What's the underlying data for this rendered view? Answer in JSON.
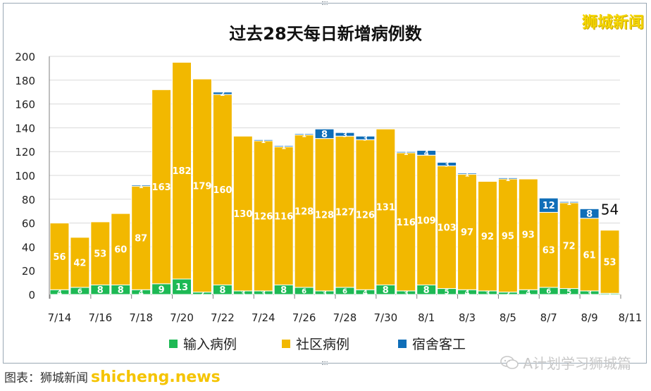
{
  "header": {
    "title": "过去28天每日新增病例数",
    "watermark": "狮城新闻"
  },
  "colors": {
    "imported": "#1db954",
    "community": "#f2b800",
    "dormitory": "#0f6eb8",
    "grid": "#d9d9d9",
    "axis": "#7f7f7f"
  },
  "chart_data": {
    "type": "bar",
    "stacked": true,
    "categories": [
      "7/14",
      "7/15",
      "7/16",
      "7/17",
      "7/18",
      "7/19",
      "7/20",
      "7/21",
      "7/22",
      "7/23",
      "7/24",
      "7/25",
      "7/26",
      "7/27",
      "7/28",
      "7/29",
      "7/30",
      "7/31",
      "8/1",
      "8/2",
      "8/3",
      "8/4",
      "8/5",
      "8/6",
      "8/7",
      "8/8",
      "8/9",
      "8/10"
    ],
    "x_tick_labels": [
      "7/14",
      "7/16",
      "7/18",
      "7/20",
      "7/22",
      "7/24",
      "7/26",
      "7/28",
      "7/30",
      "8/1",
      "8/3",
      "8/5",
      "8/7",
      "8/9",
      "8/11"
    ],
    "series": [
      {
        "name": "输入病例",
        "color": "#1db954",
        "values": [
          4,
          6,
          8,
          8,
          4,
          9,
          13,
          2,
          8,
          3,
          3,
          8,
          6,
          3,
          6,
          4,
          8,
          3,
          8,
          5,
          4,
          3,
          2,
          4,
          6,
          5,
          3,
          1
        ]
      },
      {
        "name": "社区病例",
        "color": "#f2b800",
        "values": [
          56,
          42,
          53,
          60,
          87,
          163,
          182,
          179,
          160,
          130,
          126,
          116,
          128,
          128,
          127,
          126,
          131,
          116,
          109,
          103,
          97,
          92,
          95,
          93,
          63,
          72,
          61,
          53
        ]
      },
      {
        "name": "宿舍客工",
        "color": "#0f6eb8",
        "values": [
          0,
          0,
          0,
          0,
          1,
          0,
          0,
          0,
          2,
          0,
          1,
          1,
          1,
          8,
          3,
          3,
          0,
          1,
          4,
          3,
          1,
          0,
          1,
          0,
          12,
          1,
          8,
          0
        ]
      }
    ],
    "data_labels": [
      [
        "4",
        "6",
        "8",
        "8",
        "4",
        "9",
        "13",
        "2",
        "8",
        "3",
        "3",
        "8",
        "6",
        "3",
        "6",
        "4",
        "8",
        "3",
        "8",
        "5",
        "4",
        "3",
        "2",
        "4",
        "6",
        "5",
        "3",
        "1"
      ],
      [
        "56",
        "42",
        "53",
        "60",
        "87",
        "163",
        "182",
        "179",
        "160",
        "130",
        "126",
        "116",
        "128",
        "128",
        "127",
        "126",
        "131",
        "116",
        "109",
        "103",
        "97",
        "92",
        "95",
        "93",
        "63",
        "72",
        "61",
        "53"
      ],
      [
        "",
        "",
        "",
        "",
        "1",
        "",
        "",
        "",
        "2",
        "",
        "1",
        "1",
        "1",
        "8",
        "3",
        "3",
        "",
        "1",
        "4",
        "3",
        "1",
        "",
        "1",
        "",
        "12",
        "1",
        "8",
        ""
      ]
    ],
    "total_labels": [
      "",
      "",
      "",
      "",
      "",
      "",
      "",
      "",
      "",
      "",
      "",
      "",
      "",
      "",
      "",
      "",
      "",
      "",
      "",
      "",
      "",
      "",
      "",
      "",
      "",
      "",
      "",
      "54"
    ],
    "ylim": [
      0,
      200
    ],
    "yticks": [
      0,
      20,
      40,
      60,
      80,
      100,
      120,
      140,
      160,
      180,
      200
    ],
    "grid": "horizontal",
    "legend": "bottom"
  },
  "legend": [
    {
      "label": "输入病例",
      "color": "#1db954"
    },
    {
      "label": "社区病例",
      "color": "#f2b800"
    },
    {
      "label": "宿舍客工",
      "color": "#0f6eb8"
    }
  ],
  "footer": {
    "source": "图表：狮城新闻",
    "brand": "shicheng.news",
    "account": "A计划学习狮城篇"
  }
}
